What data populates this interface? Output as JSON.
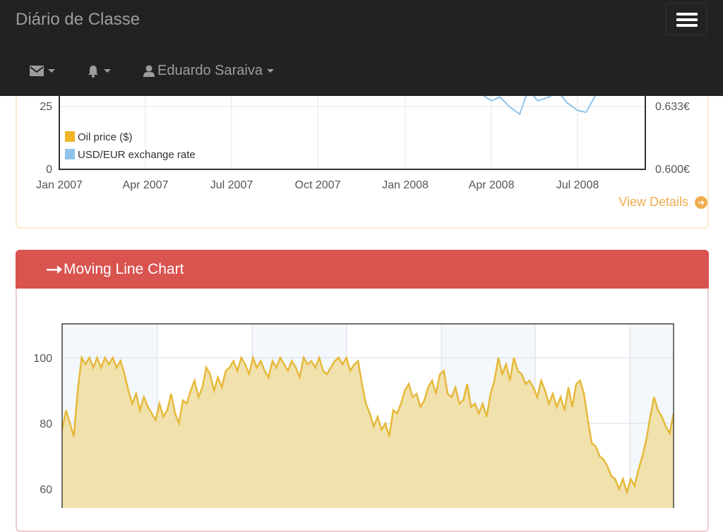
{
  "navbar": {
    "brand": "Diário de Classe",
    "items": [
      {
        "icon": "envelope-icon"
      },
      {
        "icon": "bell-icon"
      },
      {
        "icon": "user-icon",
        "label": "Eduardo Saraiva"
      }
    ],
    "toggle_icon": "hamburger-menu-icon"
  },
  "top_panel": {
    "view_details": "View Details",
    "view_details_icon": "arrow-circle-right-icon"
  },
  "moving_panel": {
    "title": "Moving Line Chart",
    "title_icon": "long-arrow-right-icon"
  },
  "chart_data": [
    {
      "type": "line",
      "series": [
        {
          "name": "Oil price ($)",
          "color": "#f0b429"
        },
        {
          "name": "USD/EUR exchange rate",
          "color": "#8ec3ea",
          "x": [
            "2008-03-20",
            "2008-04-01",
            "2008-04-10",
            "2008-04-20",
            "2008-05-01",
            "2008-05-10",
            "2008-05-20",
            "2008-06-01",
            "2008-06-10",
            "2008-06-20",
            "2008-07-01",
            "2008-07-10",
            "2008-07-20"
          ],
          "values": [
            0.64,
            0.636,
            0.638,
            0.633,
            0.629,
            0.642,
            0.636,
            0.638,
            0.641,
            0.635,
            0.631,
            0.63,
            0.639
          ]
        }
      ],
      "x_tick_labels": [
        "Jan 2007",
        "Apr 2007",
        "Jul 2007",
        "Oct 2007",
        "Jan 2008",
        "Apr 2008",
        "Jul 2008"
      ],
      "y_left_tick_labels": [
        "0",
        "25"
      ],
      "y_right_tick_labels": [
        "0.600€",
        "0.633€"
      ],
      "legend_placement": "bottom-left",
      "grid": true
    },
    {
      "type": "area",
      "color": "#e6b93a",
      "fill": "#f0e1ad",
      "y_tick_labels": [
        "60",
        "80",
        "100"
      ],
      "ylim": [
        55,
        110
      ],
      "grid": true,
      "values": [
        78,
        84,
        80,
        76,
        90,
        100,
        98,
        100,
        97,
        100,
        97,
        100,
        98,
        100,
        97,
        99,
        95,
        90,
        86,
        89,
        84,
        88,
        85,
        83,
        81,
        86,
        82,
        84,
        89,
        83,
        80,
        87,
        86,
        90,
        93,
        88,
        91,
        97,
        95,
        90,
        94,
        91,
        96,
        97,
        99,
        96,
        100,
        98,
        95,
        100,
        97,
        99,
        96,
        94,
        99,
        97,
        100,
        98,
        96,
        99,
        97,
        94,
        100,
        98,
        99,
        97,
        100,
        96,
        95,
        97,
        99,
        100,
        98,
        100,
        96,
        98,
        99,
        92,
        86,
        83,
        79,
        82,
        78,
        80,
        76,
        84,
        83,
        86,
        90,
        92,
        88,
        89,
        85,
        87,
        91,
        93,
        89,
        95,
        96,
        89,
        88,
        91,
        86,
        87,
        92,
        85,
        86,
        83,
        86,
        82,
        89,
        93,
        100,
        95,
        98,
        93,
        100,
        96,
        95,
        92,
        93,
        91,
        88,
        93,
        90,
        86,
        89,
        85,
        88,
        84,
        91,
        85,
        92,
        93,
        89,
        81,
        74,
        73,
        70,
        69,
        67,
        64,
        63,
        60,
        63,
        59,
        63,
        61,
        66,
        70,
        75,
        82,
        88,
        84,
        82,
        79,
        77,
        83
      ]
    }
  ]
}
